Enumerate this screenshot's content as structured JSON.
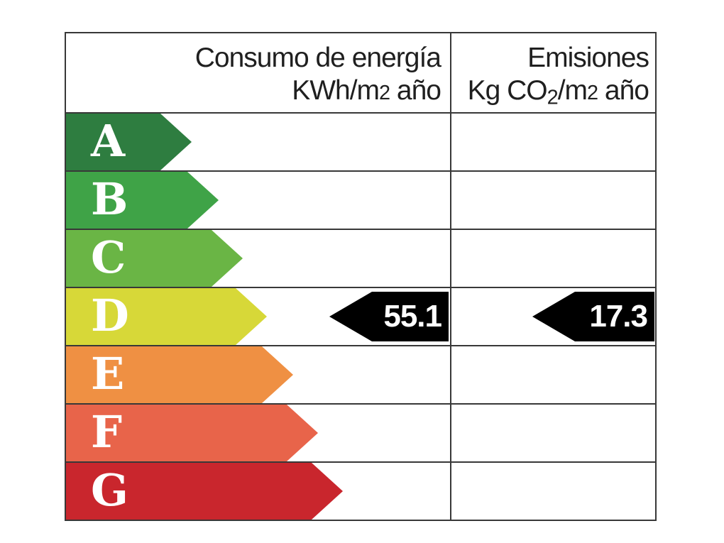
{
  "page": {
    "background": "#ffffff",
    "border_color": "#383838"
  },
  "header": {
    "consumo": {
      "line1": "Consumo de energía",
      "line2_pre": "KWh/m",
      "line2_sup": "2",
      "line2_post": " año"
    },
    "emisiones": {
      "line1": "Emisiones",
      "line2_pre": "Kg CO",
      "line2_sub": "2",
      "line2_mid": "/m",
      "line2_sup": "2",
      "line2_post": " año"
    }
  },
  "ratings": [
    {
      "letter": "A",
      "color": "#2e7d40"
    },
    {
      "letter": "B",
      "color": "#3fa347"
    },
    {
      "letter": "C",
      "color": "#6ab545"
    },
    {
      "letter": "D",
      "color": "#d7d838"
    },
    {
      "letter": "E",
      "color": "#ef9043"
    },
    {
      "letter": "F",
      "color": "#e8644a"
    },
    {
      "letter": "G",
      "color": "#c9262d"
    }
  ],
  "indicator": {
    "rating": "D",
    "consumo_value": "55.1",
    "emisiones_value": "17.3",
    "arrow_color": "#000000",
    "text_color": "#ffffff"
  },
  "chart_data": {
    "type": "bar",
    "categories": [
      "A",
      "B",
      "C",
      "D",
      "E",
      "F",
      "G"
    ],
    "scale_colors": [
      "#2e7d40",
      "#3fa347",
      "#6ab545",
      "#d7d838",
      "#ef9043",
      "#e8644a",
      "#c9262d"
    ],
    "columns": [
      {
        "label": "Consumo de energía KWh/m2 año",
        "value": 55.1,
        "rating": "D"
      },
      {
        "label": "Emisiones Kg CO2/m2 año",
        "value": 17.3,
        "rating": "D"
      }
    ],
    "title": "",
    "legend_position": "none",
    "grid": true
  }
}
